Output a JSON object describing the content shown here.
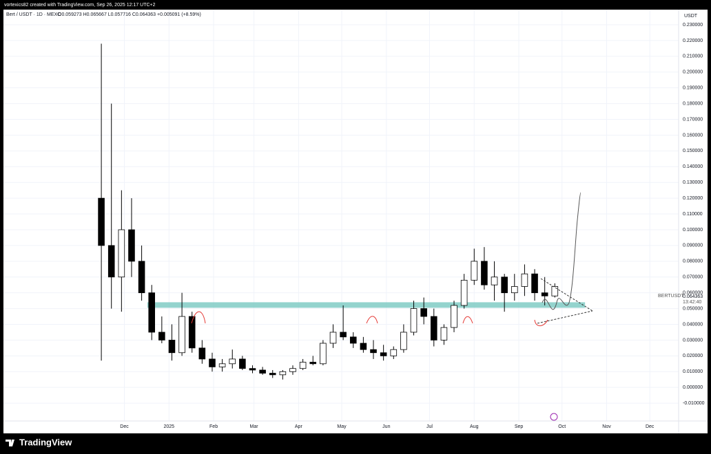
{
  "header": {
    "credit": "vortexics82 created with TradingView.com, Sep 26, 2025 12:17 UTC+2",
    "logo": "TradingView"
  },
  "chart_data": {
    "type": "candlestick",
    "title": "Bert / USDT · 1D · MEXC",
    "ohlc_text": "O0.059273 H0.065667 L0.057716 C0.064363 +0.005091 (+8.59%)",
    "currency": "USDT",
    "last_price": {
      "symbol": "BERTUSDT",
      "value": "0.064363",
      "countdown": "13:42:40"
    },
    "x": [
      -16,
      -9,
      -2,
      5,
      12,
      19,
      26,
      33,
      40,
      47,
      54,
      61,
      68,
      75,
      82,
      89,
      96,
      103,
      110,
      117,
      124,
      131,
      138,
      145,
      152,
      159,
      166,
      173,
      180,
      187,
      194,
      201,
      208,
      215,
      222,
      229,
      236,
      243,
      250,
      257,
      264,
      271,
      278,
      285,
      292,
      299
    ],
    "open": [
      0.12,
      0.09,
      0.07,
      0.1,
      0.08,
      0.06,
      0.035,
      0.03,
      0.022,
      0.045,
      0.025,
      0.018,
      0.013,
      0.015,
      0.018,
      0.012,
      0.011,
      0.009,
      0.008,
      0.01,
      0.012,
      0.016,
      0.015,
      0.028,
      0.035,
      0.032,
      0.028,
      0.024,
      0.022,
      0.02,
      0.024,
      0.035,
      0.05,
      0.045,
      0.03,
      0.038,
      0.052,
      0.068,
      0.08,
      0.065,
      0.07,
      0.06,
      0.064,
      0.072,
      0.06,
      0.058
    ],
    "high": [
      0.218,
      0.18,
      0.125,
      0.12,
      0.09,
      0.065,
      0.045,
      0.04,
      0.06,
      0.048,
      0.03,
      0.022,
      0.018,
      0.024,
      0.02,
      0.014,
      0.013,
      0.011,
      0.011,
      0.014,
      0.018,
      0.02,
      0.03,
      0.04,
      0.052,
      0.035,
      0.032,
      0.03,
      0.027,
      0.026,
      0.04,
      0.055,
      0.057,
      0.05,
      0.04,
      0.055,
      0.072,
      0.088,
      0.089,
      0.08,
      0.072,
      0.072,
      0.078,
      0.075,
      0.07,
      0.066
    ],
    "low": [
      0.017,
      0.05,
      0.048,
      0.07,
      0.055,
      0.03,
      0.028,
      0.017,
      0.02,
      0.022,
      0.015,
      0.01,
      0.01,
      0.012,
      0.011,
      0.009,
      0.008,
      0.006,
      0.005,
      0.008,
      0.011,
      0.014,
      0.014,
      0.025,
      0.03,
      0.025,
      0.022,
      0.018,
      0.017,
      0.018,
      0.022,
      0.033,
      0.04,
      0.026,
      0.027,
      0.035,
      0.05,
      0.065,
      0.062,
      0.055,
      0.048,
      0.055,
      0.058,
      0.055,
      0.052,
      0.057
    ],
    "close": [
      0.09,
      0.07,
      0.1,
      0.08,
      0.06,
      0.035,
      0.03,
      0.022,
      0.045,
      0.025,
      0.018,
      0.013,
      0.015,
      0.018,
      0.012,
      0.011,
      0.009,
      0.008,
      0.01,
      0.012,
      0.016,
      0.015,
      0.028,
      0.035,
      0.032,
      0.028,
      0.024,
      0.022,
      0.02,
      0.024,
      0.035,
      0.05,
      0.045,
      0.03,
      0.038,
      0.052,
      0.068,
      0.08,
      0.065,
      0.07,
      0.06,
      0.064,
      0.072,
      0.06,
      0.058,
      0.064
    ],
    "support_zone": {
      "x": [
        16,
        320
      ],
      "y": [
        0.0505,
        0.054
      ],
      "color": "#80cbc4"
    },
    "xlim": [
      -84,
      385
    ],
    "xticks": [
      {
        "value": 0,
        "label": "Dec"
      },
      {
        "value": 31,
        "label": "2025"
      },
      {
        "value": 62,
        "label": "Feb"
      },
      {
        "value": 90,
        "label": "Mar"
      },
      {
        "value": 121,
        "label": "Apr"
      },
      {
        "value": 151,
        "label": "May"
      },
      {
        "value": 182,
        "label": "Jun"
      },
      {
        "value": 212,
        "label": "Jul"
      },
      {
        "value": 243,
        "label": "Aug"
      },
      {
        "value": 274,
        "label": "Sep"
      },
      {
        "value": 304,
        "label": "Oct"
      },
      {
        "value": 335,
        "label": "Nov"
      },
      {
        "value": 365,
        "label": "Dec"
      }
    ],
    "ylim": [
      -0.0213,
      0.2396
    ],
    "yticks": [
      {
        "value": -0.01,
        "label": "-0.010000"
      },
      {
        "value": 0,
        "label": "0.000000"
      },
      {
        "value": 0.01,
        "label": "0.010000"
      },
      {
        "value": 0.02,
        "label": "0.020000"
      },
      {
        "value": 0.03,
        "label": "0.030000"
      },
      {
        "value": 0.04,
        "label": "0.040000"
      },
      {
        "value": 0.05,
        "label": "0.050000"
      },
      {
        "value": 0.06,
        "label": "0.060000"
      },
      {
        "value": 0.07,
        "label": "0.070000"
      },
      {
        "value": 0.08,
        "label": "0.080000"
      },
      {
        "value": 0.09,
        "label": "0.090000"
      },
      {
        "value": 0.1,
        "label": "0.100000"
      },
      {
        "value": 0.11,
        "label": "0.110000"
      },
      {
        "value": 0.12,
        "label": "0.120000"
      },
      {
        "value": 0.13,
        "label": "0.130000"
      },
      {
        "value": 0.14,
        "label": "0.140000"
      },
      {
        "value": 0.15,
        "label": "0.150000"
      },
      {
        "value": 0.16,
        "label": "0.160000"
      },
      {
        "value": 0.17,
        "label": "0.170000"
      },
      {
        "value": 0.18,
        "label": "0.180000"
      },
      {
        "value": 0.19,
        "label": "0.190000"
      },
      {
        "value": 0.2,
        "label": "0.200000"
      },
      {
        "value": 0.21,
        "label": "0.210000"
      },
      {
        "value": 0.22,
        "label": "0.220000"
      },
      {
        "value": 0.23,
        "label": "0.230000"
      }
    ],
    "grid": true,
    "up_color": "#ffffff",
    "down_color": "#000000"
  }
}
